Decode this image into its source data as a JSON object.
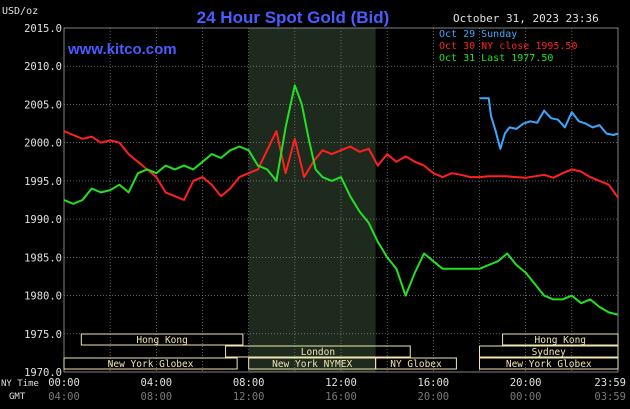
{
  "header": {
    "unit": "USD/oz",
    "title": "24 Hour Spot Gold (Bid)",
    "timestamp": "October 31, 2023 23:36",
    "website": "www.kitco.com"
  },
  "legend": {
    "placement": "top-right",
    "entries": [
      {
        "label": "Oct 29 Sunday",
        "color": "#3aa8ff"
      },
      {
        "label": "Oct 30 NY close 1995.50",
        "color": "#ff2020"
      },
      {
        "label": "Oct 31 Last 1977.50",
        "color": "#22e022"
      }
    ]
  },
  "axis_labels": {
    "ny_time": "NY Time",
    "gmt": "GMT"
  },
  "sessions": [
    {
      "name": "Hong Kong",
      "start": 0.75,
      "end": 7.75,
      "row": 0
    },
    {
      "name": "London",
      "start": 7.0,
      "end": 15.0,
      "row": 1
    },
    {
      "name": "New York Globex",
      "start": 0.0,
      "end": 7.5,
      "row": 2
    },
    {
      "name": "New York NYMEX",
      "start": 8.0,
      "end": 13.5,
      "row": 2
    },
    {
      "name": "NY Globex",
      "start": 13.5,
      "end": 17.0,
      "row": 2
    },
    {
      "name": "Hong Kong",
      "start": 19.0,
      "end": 24.0,
      "row": 0
    },
    {
      "name": "Sydney",
      "start": 18.0,
      "end": 24.0,
      "row": 1
    },
    {
      "name": "New York Globex",
      "start": 18.0,
      "end": 24.0,
      "row": 2
    }
  ],
  "colors": {
    "background": "#000000",
    "title": "#4a5cff",
    "website": "#4a5cff",
    "grid": "#9a9a9a",
    "shade": "#1e2a1e",
    "text": "#e0e0e0",
    "gmt_text": "#7a7a7a",
    "session_bar": "#f0e6b0",
    "oct29": "#3aa8ff",
    "oct30": "#ff2020",
    "oct31": "#22e022"
  },
  "chart_data": {
    "type": "line",
    "title": "24 Hour Spot Gold (Bid)",
    "ylabel": "USD/oz",
    "ylim": [
      1970,
      2015
    ],
    "yticks": [
      "1970.0",
      "1975.0",
      "1980.0",
      "1985.0",
      "1990.0",
      "1995.0",
      "2000.0",
      "2005.0",
      "2010.0",
      "2015.0"
    ],
    "xlim": [
      0,
      24
    ],
    "x_ny_ticks": [
      "00:00",
      "04:00",
      "08:00",
      "12:00",
      "16:00",
      "20:00",
      "23:59"
    ],
    "x_gmt_ticks": [
      "04:00",
      "08:00",
      "12:00",
      "16:00",
      "20:00",
      "00:00",
      "03:59"
    ],
    "shaded_range": [
      8.0,
      13.5
    ],
    "grid": true,
    "series": [
      {
        "name": "Oct 29 Sunday",
        "x": [
          18.0,
          18.4,
          18.5,
          18.7,
          18.9,
          19.1,
          19.3,
          19.6,
          19.9,
          20.2,
          20.5,
          20.8,
          21.1,
          21.4,
          21.7,
          22.0,
          22.3,
          22.6,
          22.9,
          23.2,
          23.5,
          23.8,
          24.0
        ],
        "values": [
          2005.8,
          2005.8,
          2003.5,
          2001.5,
          1999.2,
          2001.2,
          2002.0,
          2001.8,
          2002.5,
          2002.8,
          2002.6,
          2004.2,
          2003.2,
          2003.0,
          2002.0,
          2004.0,
          2002.8,
          2002.5,
          2002.0,
          2002.3,
          2001.2,
          2001.0,
          2001.2
        ]
      },
      {
        "name": "Oct 30 NY close 1995.50",
        "x": [
          0.0,
          0.4,
          0.8,
          1.2,
          1.6,
          2.0,
          2.4,
          2.8,
          3.2,
          3.6,
          4.0,
          4.4,
          4.8,
          5.2,
          5.6,
          6.0,
          6.4,
          6.8,
          7.2,
          7.6,
          8.0,
          8.4,
          8.8,
          9.2,
          9.6,
          10.0,
          10.4,
          10.8,
          11.2,
          11.6,
          12.0,
          12.4,
          12.8,
          13.2,
          13.6,
          14.0,
          14.4,
          14.8,
          15.2,
          15.6,
          16.0,
          16.4,
          16.8,
          17.2,
          17.6,
          18.0,
          18.4,
          18.8,
          19.2,
          19.6,
          20.0,
          20.4,
          20.8,
          21.2,
          21.6,
          22.0,
          22.4,
          22.8,
          23.2,
          23.6,
          24.0
        ],
        "values": [
          2001.5,
          2001.0,
          2000.5,
          2000.8,
          2000.0,
          2000.3,
          2000.0,
          1998.5,
          1997.5,
          1996.5,
          1995.5,
          1993.5,
          1993.0,
          1992.5,
          1995.0,
          1995.5,
          1994.5,
          1993.0,
          1994.0,
          1995.5,
          1996.0,
          1996.5,
          1999.0,
          2001.5,
          1996.0,
          2000.5,
          1995.5,
          1997.5,
          1999.0,
          1998.5,
          1999.0,
          1999.5,
          1998.8,
          1999.2,
          1997.0,
          1998.5,
          1997.5,
          1998.2,
          1997.5,
          1997.0,
          1996.0,
          1995.5,
          1996.0,
          1995.8,
          1995.5,
          1995.5,
          1995.6,
          1995.6,
          1995.6,
          1995.5,
          1995.4,
          1995.6,
          1995.8,
          1995.4,
          1996.0,
          1996.5,
          1996.2,
          1995.5,
          1995.0,
          1994.5,
          1992.8
        ]
      },
      {
        "name": "Oct 31 Last 1977.50",
        "x": [
          0.0,
          0.4,
          0.8,
          1.2,
          1.6,
          2.0,
          2.4,
          2.8,
          3.2,
          3.6,
          4.0,
          4.4,
          4.8,
          5.2,
          5.6,
          6.0,
          6.4,
          6.8,
          7.2,
          7.6,
          8.0,
          8.4,
          8.8,
          9.2,
          9.6,
          10.0,
          10.3,
          10.6,
          10.9,
          11.2,
          11.6,
          12.0,
          12.4,
          12.8,
          13.2,
          13.6,
          14.0,
          14.4,
          14.8,
          15.2,
          15.6,
          16.0,
          16.4,
          16.8,
          17.2,
          17.6,
          18.0,
          18.4,
          18.8,
          19.2,
          19.6,
          20.0,
          20.4,
          20.8,
          21.2,
          21.6,
          22.0,
          22.4,
          22.8,
          23.2,
          23.6,
          24.0
        ],
        "values": [
          1992.5,
          1992.0,
          1992.5,
          1994.0,
          1993.5,
          1993.8,
          1994.5,
          1993.5,
          1996.0,
          1996.5,
          1996.0,
          1997.0,
          1996.5,
          1997.0,
          1996.5,
          1997.5,
          1998.5,
          1998.0,
          1999.0,
          1999.5,
          1999.0,
          1997.0,
          1996.5,
          1995.0,
          2002.0,
          2007.5,
          2005.0,
          2000.5,
          1996.5,
          1995.5,
          1995.0,
          1995.5,
          1993.0,
          1991.0,
          1989.5,
          1987.0,
          1985.0,
          1983.5,
          1980.0,
          1983.0,
          1985.5,
          1984.5,
          1983.5,
          1983.5,
          1983.5,
          1983.5,
          1983.5,
          1984.0,
          1984.5,
          1985.5,
          1984.0,
          1983.0,
          1981.5,
          1980.0,
          1979.5,
          1979.5,
          1980.0,
          1979.0,
          1979.5,
          1978.5,
          1977.8,
          1977.5
        ]
      }
    ]
  }
}
